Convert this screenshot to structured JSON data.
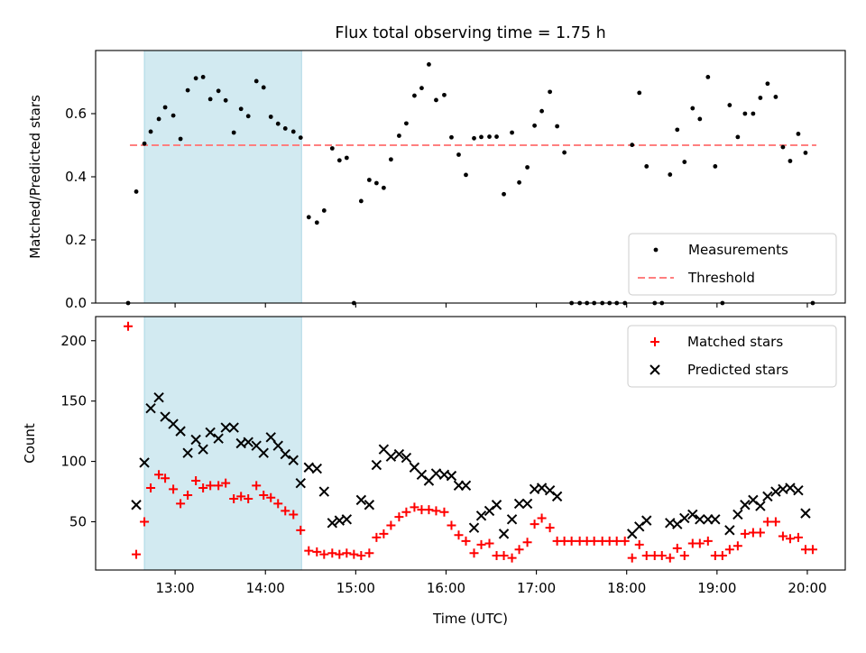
{
  "title": "Flux total observing time = 1.75 h",
  "colors": {
    "highlight": "#add8e6",
    "measure": "#000000",
    "threshold": "#ff7f7f",
    "matched": "#ff0000",
    "predicted": "#000000"
  },
  "chart_data": [
    {
      "type": "scatter",
      "ylabel": "Matched/Predicted stars",
      "xlim": [
        12.12,
        20.42
      ],
      "ylim": [
        0,
        0.8
      ],
      "yticks": [
        0.0,
        0.2,
        0.4,
        0.6
      ],
      "ytick_labels": [
        "0.0",
        "0.2",
        "0.4",
        "0.6"
      ],
      "shaded_region": [
        12.66,
        14.4
      ],
      "threshold": {
        "value": 0.5,
        "x": [
          12.5,
          20.1
        ]
      },
      "legend": {
        "position": "bottom-right",
        "entries": [
          "Measurements",
          "Threshold"
        ]
      },
      "series": [
        {
          "name": "Measurements",
          "x": [
            12.48,
            12.57,
            12.66,
            12.73,
            12.82,
            12.89,
            12.98,
            13.06,
            13.14,
            13.23,
            13.31,
            13.39,
            13.48,
            13.56,
            13.65,
            13.73,
            13.81,
            13.9,
            13.98,
            14.06,
            14.14,
            14.22,
            14.31,
            14.39,
            14.48,
            14.57,
            14.65,
            14.74,
            14.82,
            14.9,
            14.98,
            15.06,
            15.15,
            15.23,
            15.31,
            15.39,
            15.48,
            15.56,
            15.65,
            15.73,
            15.81,
            15.89,
            15.98,
            16.06,
            16.14,
            16.22,
            16.31,
            16.39,
            16.48,
            16.56,
            16.64,
            16.73,
            16.81,
            16.9,
            16.98,
            17.06,
            17.15,
            17.23,
            17.31,
            17.39,
            17.48,
            17.56,
            17.64,
            17.73,
            17.81,
            17.89,
            17.98,
            18.06,
            18.14,
            18.22,
            18.31,
            18.39,
            18.48,
            18.56,
            18.64,
            18.73,
            18.81,
            18.9,
            18.98,
            19.06,
            19.14,
            19.23,
            19.31,
            19.4,
            19.48,
            19.56,
            19.65,
            19.73,
            19.81,
            19.9,
            19.98,
            20.06
          ],
          "y": [
            0.0,
            0.353,
            0.505,
            0.543,
            0.583,
            0.62,
            0.594,
            0.52,
            0.674,
            0.712,
            0.716,
            0.646,
            0.672,
            0.642,
            0.54,
            0.615,
            0.592,
            0.703,
            0.683,
            0.59,
            0.568,
            0.553,
            0.543,
            0.524,
            0.272,
            0.255,
            0.293,
            0.49,
            0.452,
            0.46,
            0.0,
            0.323,
            0.39,
            0.38,
            0.365,
            0.455,
            0.53,
            0.569,
            0.657,
            0.681,
            0.756,
            0.643,
            0.659,
            0.525,
            0.47,
            0.406,
            0.522,
            0.526,
            0.527,
            0.527,
            0.345,
            0.54,
            0.382,
            0.43,
            0.562,
            0.608,
            0.669,
            0.56,
            0.477,
            0.0,
            0.0,
            0.0,
            0.0,
            0.0,
            0.0,
            0.0,
            0.0,
            0.501,
            0.666,
            0.433,
            0.0,
            0.0,
            0.407,
            0.549,
            0.447,
            0.617,
            0.583,
            0.716,
            0.433,
            0.0,
            0.627,
            0.526,
            0.6,
            0.6,
            0.65,
            0.695,
            0.653,
            0.494,
            0.45,
            0.536,
            0.476,
            0.0
          ]
        }
      ]
    },
    {
      "type": "scatter",
      "xlabel": "Time (UTC)",
      "ylabel": "Count",
      "xlim": [
        12.12,
        20.42
      ],
      "ylim": [
        10,
        220
      ],
      "yticks": [
        50,
        100,
        150,
        200
      ],
      "ytick_labels": [
        "50",
        "100",
        "150",
        "200"
      ],
      "xticks": [
        13,
        14,
        15,
        16,
        17,
        18,
        19,
        20
      ],
      "xtick_labels": [
        "13:00",
        "14:00",
        "15:00",
        "16:00",
        "17:00",
        "18:00",
        "19:00",
        "20:00"
      ],
      "shaded_region": [
        12.66,
        14.4
      ],
      "legend": {
        "position": "top-right",
        "entries": [
          "Matched stars",
          "Predicted stars"
        ]
      },
      "series": [
        {
          "name": "Matched stars",
          "x": [
            12.48,
            12.57,
            12.66,
            12.73,
            12.82,
            12.89,
            12.98,
            13.06,
            13.14,
            13.23,
            13.31,
            13.39,
            13.48,
            13.56,
            13.65,
            13.73,
            13.81,
            13.9,
            13.98,
            14.06,
            14.14,
            14.22,
            14.31,
            14.39,
            14.48,
            14.57,
            14.65,
            14.74,
            14.82,
            14.9,
            14.98,
            15.06,
            15.15,
            15.23,
            15.31,
            15.39,
            15.48,
            15.56,
            15.65,
            15.73,
            15.81,
            15.89,
            15.98,
            16.06,
            16.14,
            16.22,
            16.31,
            16.39,
            16.48,
            16.56,
            16.64,
            16.73,
            16.81,
            16.9,
            16.98,
            17.06,
            17.15,
            17.23,
            17.31,
            17.39,
            17.48,
            17.56,
            17.64,
            17.73,
            17.81,
            17.89,
            17.98,
            18.06,
            18.14,
            18.22,
            18.31,
            18.39,
            18.48,
            18.56,
            18.64,
            18.73,
            18.81,
            18.9,
            18.98,
            19.06,
            19.14,
            19.23,
            19.31,
            19.4,
            19.48,
            19.56,
            19.65,
            19.73,
            19.81,
            19.9,
            19.98,
            20.06
          ],
          "y": [
            212,
            23,
            50,
            78,
            89,
            86,
            77,
            65,
            72,
            84,
            78,
            80,
            80,
            82,
            69,
            71,
            69,
            80,
            72,
            70,
            65,
            59,
            56,
            43,
            26,
            25,
            23,
            24,
            23,
            24,
            23,
            22,
            24,
            37,
            40,
            47,
            54,
            58,
            62,
            60,
            60,
            59,
            58,
            47,
            39,
            34,
            24,
            31,
            32,
            22,
            22,
            20,
            27,
            33,
            48,
            53,
            45,
            34,
            34,
            34,
            34,
            34,
            34,
            34,
            34,
            34,
            34,
            20,
            31,
            22,
            22,
            22,
            20,
            28,
            22,
            32,
            32,
            34,
            22,
            22,
            27,
            30,
            40,
            41,
            41,
            50,
            50,
            38,
            36,
            37,
            27,
            27
          ]
        },
        {
          "name": "Predicted stars",
          "x": [
            12.57,
            12.66,
            12.73,
            12.82,
            12.89,
            12.98,
            13.06,
            13.14,
            13.23,
            13.31,
            13.39,
            13.48,
            13.56,
            13.65,
            13.73,
            13.81,
            13.9,
            13.98,
            14.06,
            14.14,
            14.22,
            14.31,
            14.39,
            14.48,
            14.57,
            14.65,
            14.74,
            14.82,
            14.9,
            15.06,
            15.15,
            15.23,
            15.31,
            15.39,
            15.48,
            15.56,
            15.65,
            15.73,
            15.81,
            15.89,
            15.98,
            16.06,
            16.14,
            16.22,
            16.31,
            16.39,
            16.48,
            16.56,
            16.64,
            16.73,
            16.81,
            16.9,
            16.98,
            17.06,
            17.15,
            17.23,
            18.06,
            18.14,
            18.22,
            18.48,
            18.56,
            18.64,
            18.73,
            18.81,
            18.9,
            18.98,
            19.14,
            19.23,
            19.31,
            19.4,
            19.48,
            19.56,
            19.65,
            19.73,
            19.81,
            19.9,
            19.98
          ],
          "y": [
            64,
            99,
            144,
            153,
            137,
            131,
            125,
            107,
            118,
            110,
            124,
            119,
            128,
            128,
            115,
            116,
            113,
            107,
            120,
            113,
            106,
            101,
            82,
            95,
            94,
            75,
            49,
            51,
            52,
            68,
            64,
            97,
            110,
            104,
            106,
            103,
            95,
            89,
            84,
            90,
            89,
            88,
            80,
            80,
            45,
            55,
            59,
            64,
            40,
            52,
            65,
            65,
            77,
            78,
            76,
            71,
            40,
            46,
            51,
            49,
            48,
            53,
            56,
            52,
            52,
            52,
            43,
            56,
            64,
            68,
            63,
            71,
            75,
            77,
            78,
            76,
            57
          ]
        }
      ]
    }
  ]
}
